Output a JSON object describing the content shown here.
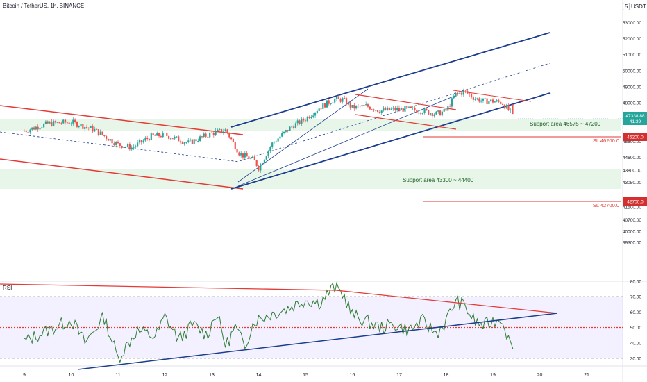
{
  "header": {
    "title": "Bitcoin / TetherUS, 1h, BINANCE",
    "menu_label": "5",
    "currency_label": "USDT"
  },
  "chart_data": [
    {
      "type": "candlestick",
      "title": "Bitcoin / TetherUS, 1h, BINANCE",
      "y_ticks": [
        53000,
        52000,
        51000,
        50000,
        49000,
        48000,
        47200,
        46200,
        45600,
        44600,
        43800,
        43050,
        42700,
        41500,
        40700,
        40000,
        39300
      ],
      "y_tick_labels": [
        "53000.00",
        "52000.00",
        "51000.00",
        "50000.00",
        "49000.00",
        "48000.00",
        "47200.00",
        "46200.00",
        "45600.00",
        "44600.00",
        "43800.00",
        "43050.00",
        "42700.00",
        "41500.00",
        "40700.00",
        "40000.00",
        "39300.00"
      ],
      "x_tick_labels": [
        "9",
        "10",
        "11",
        "12",
        "13",
        "14",
        "15",
        "16",
        "17",
        "18",
        "19",
        "20",
        "21"
      ],
      "last_price": "47338.88",
      "countdown": "41:39",
      "price_tags": [
        {
          "value": "46200.0",
          "color": "#d32f2f"
        },
        {
          "value": "42700.0",
          "color": "#d32f2f"
        }
      ],
      "annotations": {
        "support_upper": "Support area 46575 ~ 47200",
        "support_lower": "Support area 43300 ~ 44400",
        "sl_upper": "SL 46200.0",
        "sl_lower": "SL 42700.0"
      },
      "path": [
        [
          "9",
          46250
        ],
        [
          "9.5",
          46700
        ],
        [
          "10",
          46800
        ],
        [
          "10.5",
          46300
        ],
        [
          "11",
          45400
        ],
        [
          "11.3",
          45200
        ],
        [
          "11.7",
          45900
        ],
        [
          "12",
          46000
        ],
        [
          "12.5",
          45500
        ],
        [
          "13",
          46100
        ],
        [
          "13.3",
          46300
        ],
        [
          "13.6",
          44800
        ],
        [
          "13.9",
          44450
        ],
        [
          "14",
          43950
        ],
        [
          "14.3",
          45500
        ],
        [
          "14.7",
          46500
        ],
        [
          "15",
          47000
        ],
        [
          "15.3",
          47700
        ],
        [
          "15.6",
          48200
        ],
        [
          "15.8",
          48200
        ],
        [
          "16",
          47700
        ],
        [
          "16.3",
          47800
        ],
        [
          "16.6",
          47500
        ],
        [
          "16.9",
          47600
        ],
        [
          "17.2",
          47600
        ],
        [
          "17.5",
          47500
        ],
        [
          "17.8",
          47300
        ],
        [
          "18",
          47500
        ],
        [
          "18.2",
          48500
        ],
        [
          "18.4",
          48700
        ],
        [
          "18.6",
          48300
        ],
        [
          "18.8",
          48100
        ],
        [
          "19",
          48100
        ],
        [
          "19.2",
          48000
        ],
        [
          "19.4",
          47300
        ]
      ],
      "colors": {
        "up": "#26a69a",
        "down": "#ef5350",
        "support_zone": "#e8f5e9",
        "channel": "#1a3d8f",
        "trend_red": "#e53935"
      }
    },
    {
      "type": "line",
      "title": "RSI",
      "y_ticks": [
        80,
        70,
        60,
        50,
        40,
        30
      ],
      "y_tick_labels": [
        "80.00",
        "70.00",
        "60.00",
        "50.00",
        "40.00",
        "30.00"
      ],
      "levels": [
        70,
        50,
        30
      ],
      "path": [
        [
          "9",
          41
        ],
        [
          "9.5",
          48
        ],
        [
          "10",
          55
        ],
        [
          "10.3",
          40
        ],
        [
          "10.7",
          57
        ],
        [
          "11",
          30
        ],
        [
          "11.4",
          48
        ],
        [
          "11.8",
          44
        ],
        [
          "12",
          57
        ],
        [
          "12.3",
          42
        ],
        [
          "12.6",
          52
        ],
        [
          "12.9",
          45
        ],
        [
          "13.1",
          60
        ],
        [
          "13.3",
          38
        ],
        [
          "13.5",
          50
        ],
        [
          "13.7",
          38
        ],
        [
          "13.9",
          54
        ],
        [
          "14.2",
          58
        ],
        [
          "14.6",
          62
        ],
        [
          "15",
          68
        ],
        [
          "15.3",
          66
        ],
        [
          "15.6",
          76
        ],
        [
          "15.8",
          72
        ],
        [
          "16",
          58
        ],
        [
          "16.3",
          54
        ],
        [
          "16.6",
          50
        ],
        [
          "16.9",
          52
        ],
        [
          "17.2",
          48
        ],
        [
          "17.5",
          54
        ],
        [
          "17.8",
          46
        ],
        [
          "18",
          54
        ],
        [
          "18.2",
          67
        ],
        [
          "18.4",
          64
        ],
        [
          "18.6",
          54
        ],
        [
          "18.8",
          51
        ],
        [
          "19",
          54
        ],
        [
          "19.2",
          56
        ],
        [
          "19.4",
          36
        ]
      ]
    }
  ]
}
